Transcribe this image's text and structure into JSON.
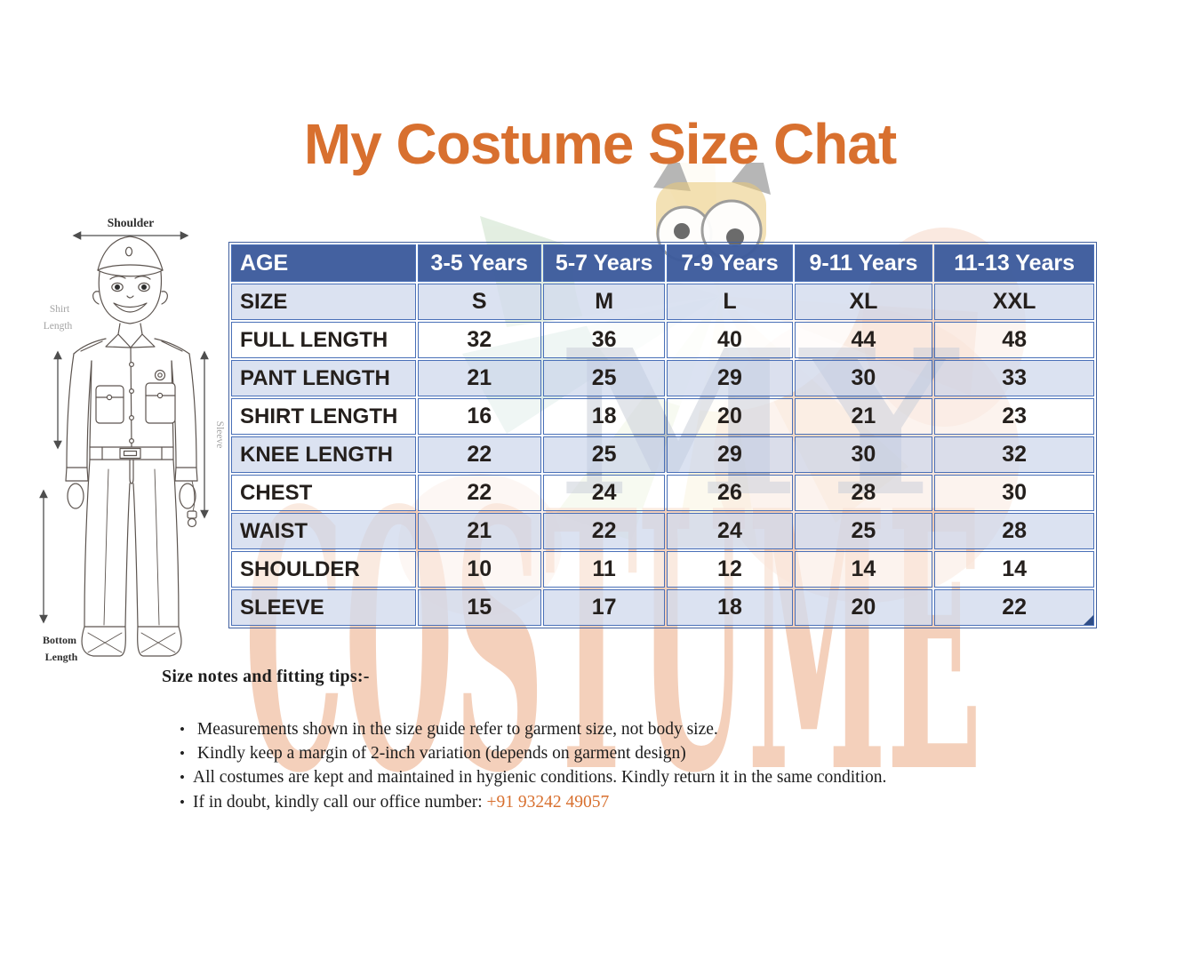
{
  "page": {
    "title": "My Costume Size Chat"
  },
  "colors": {
    "title_orange": "#d8702f",
    "header_blue": "#3c5b9c",
    "cell_border_blue": "#4a70b8",
    "row_light_blue": "#d2dbee",
    "phone_orange": "#d8702f",
    "watermark_peach": "#f2cdb6",
    "watermark_slate": "#8c96ac"
  },
  "figure": {
    "labels": {
      "shoulder": "Shoulder",
      "shirt_line1": "Shirt",
      "shirt_line2": "Length",
      "sleeve": "Sleeve",
      "bottom_line1": "Bottom",
      "bottom_line2": "Length"
    }
  },
  "watermark": {
    "word1": "MY",
    "word2": "COSTUME"
  },
  "table": {
    "header": {
      "label": "AGE",
      "columns": [
        "3-5 Years",
        "5-7 Years",
        "7-9 Years",
        "9-11 Years",
        "11-13 Years"
      ]
    },
    "size_row": {
      "label": "SIZE",
      "values": [
        "S",
        "M",
        "L",
        "XL",
        "XXL"
      ]
    },
    "rows": [
      {
        "label": "FULL LENGTH",
        "values": [
          "32",
          "36",
          "40",
          "44",
          "48"
        ]
      },
      {
        "label": "PANT LENGTH",
        "values": [
          "21",
          "25",
          "29",
          "30",
          "33"
        ]
      },
      {
        "label": "SHIRT LENGTH",
        "values": [
          "16",
          "18",
          "20",
          "21",
          "23"
        ]
      },
      {
        "label": "KNEE LENGTH",
        "values": [
          "22",
          "25",
          "29",
          "30",
          "32"
        ]
      },
      {
        "label": "CHEST",
        "values": [
          "22",
          "24",
          "26",
          "28",
          "30"
        ]
      },
      {
        "label": "WAIST",
        "values": [
          "21",
          "22",
          "24",
          "25",
          "28"
        ]
      },
      {
        "label": "SHOULDER",
        "values": [
          "10",
          "11",
          "12",
          "14",
          "14"
        ]
      },
      {
        "label": "SLEEVE",
        "values": [
          "15",
          "17",
          "18",
          "20",
          "22"
        ]
      }
    ]
  },
  "notes": {
    "heading": "Size notes and fitting tips:-",
    "items": [
      {
        "text": " Measurements shown in the size guide refer to garment size, not body size."
      },
      {
        "text": " Kindly keep a margin of 2-inch variation (depends on garment design)"
      },
      {
        "text": "All costumes are kept and maintained in hygienic conditions. Kindly return it in the same condition."
      },
      {
        "text": "If in doubt, kindly call our office number: ",
        "phone": "+91 93242 49057"
      }
    ]
  }
}
